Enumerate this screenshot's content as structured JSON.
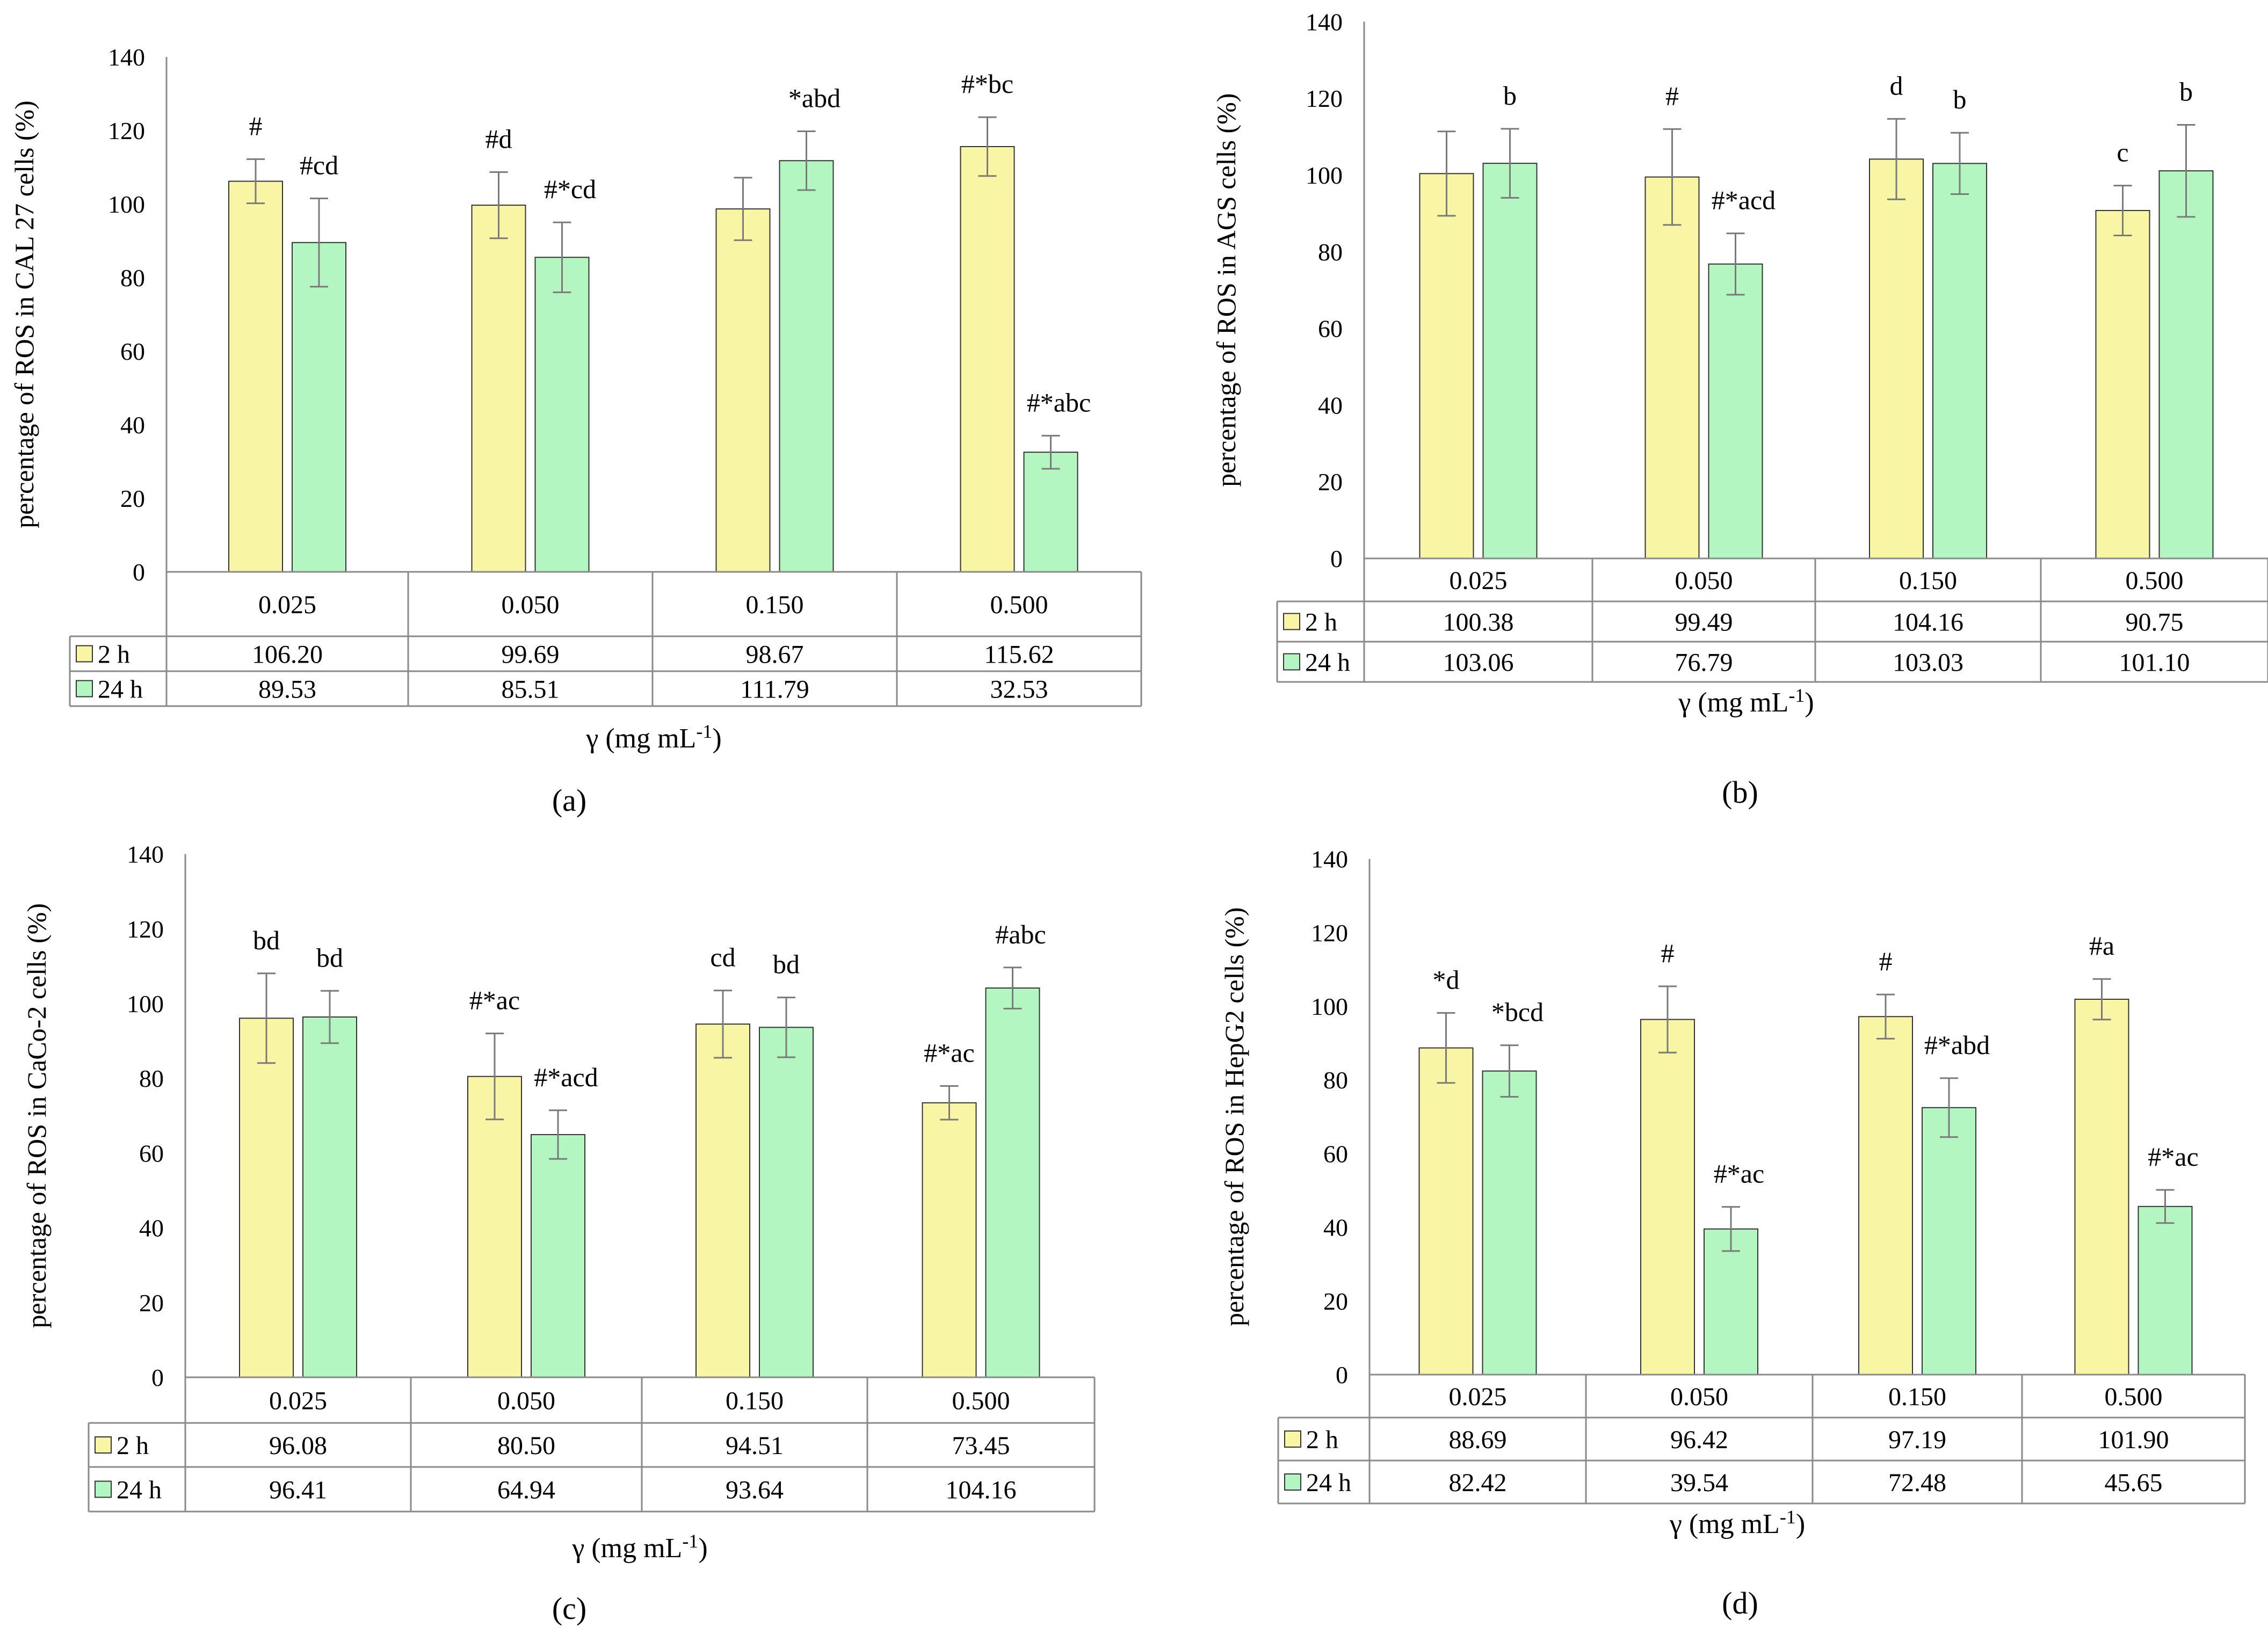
{
  "colors": {
    "bar_2h": "#f8f5a4",
    "bar_24h": "#b4f6c2",
    "bar_stroke": "#333333",
    "axis": "#8a8a8a",
    "error_bar": "#7a7a7a"
  },
  "chart_data": [
    {
      "type": "bar",
      "panel_label": "(a)",
      "ylabel": "percentage of  ROS in CAL 27 cells (%)",
      "xlabel": "γ (mg mL",
      "xlabel_sup": "-1",
      "xlabel_close": ")",
      "ylim": [
        0,
        140
      ],
      "yticks": [
        "0",
        "20",
        "40",
        "60",
        "80",
        "100",
        "120",
        "140"
      ],
      "categories": [
        "0.025",
        "0.050",
        "0.150",
        "0.500"
      ],
      "series": [
        {
          "name": "2 h",
          "values": [
            106.2,
            99.69,
            98.67,
            115.62
          ],
          "errors": [
            6,
            9,
            8.5,
            8
          ],
          "labels": [
            "106.20",
            "99.69",
            "98.67",
            "115.62"
          ],
          "annotations": [
            "#",
            "#d",
            "",
            "#*bc"
          ]
        },
        {
          "name": "24 h",
          "values": [
            89.53,
            85.51,
            111.79,
            32.53
          ],
          "errors": [
            12,
            9.5,
            8,
            4.5
          ],
          "labels": [
            "89.53",
            "85.51",
            "111.79",
            "32.53"
          ],
          "annotations": [
            "#cd",
            "#*cd",
            "*abd",
            "#*abc"
          ]
        }
      ]
    },
    {
      "type": "bar",
      "panel_label": "(b)",
      "ylabel": "percentage of  ROS in AGS cells (%)",
      "xlabel": "γ (mg mL",
      "xlabel_sup": "-1",
      "xlabel_close": ")",
      "ylim": [
        0,
        140
      ],
      "yticks": [
        "0",
        "20",
        "40",
        "60",
        "80",
        "100",
        "120",
        "140"
      ],
      "categories": [
        "0.025",
        "0.050",
        "0.150",
        "0.500"
      ],
      "series": [
        {
          "name": "2 h",
          "values": [
            100.38,
            99.49,
            104.16,
            90.75
          ],
          "errors": [
            11,
            12.5,
            10.5,
            6.5
          ],
          "labels": [
            "100.38",
            "99.49",
            "104.16",
            "90.75"
          ],
          "annotations": [
            "",
            "#",
            "d",
            "c"
          ]
        },
        {
          "name": "24 h",
          "values": [
            103.06,
            76.79,
            103.03,
            101.1
          ],
          "errors": [
            9,
            8,
            8,
            12
          ],
          "labels": [
            "103.06",
            "76.79",
            "103.03",
            "101.10"
          ],
          "annotations": [
            "b",
            "#*acd",
            "b",
            "b"
          ]
        }
      ]
    },
    {
      "type": "bar",
      "panel_label": "(c)",
      "ylabel": "percentage of  ROS in CaCo-2 cells (%)",
      "xlabel": "γ (mg mL",
      "xlabel_sup": "-1",
      "xlabel_close": ")",
      "ylim": [
        0,
        140
      ],
      "yticks": [
        "0",
        "20",
        "40",
        "60",
        "80",
        "100",
        "120",
        "140"
      ],
      "categories": [
        "0.025",
        "0.050",
        "0.150",
        "0.500"
      ],
      "series": [
        {
          "name": "2 h",
          "values": [
            96.08,
            80.5,
            94.51,
            73.45
          ],
          "errors": [
            12,
            11.5,
            9,
            4.5
          ],
          "labels": [
            "96.08",
            "80.50",
            "94.51",
            "73.45"
          ],
          "annotations": [
            "bd",
            "#*ac",
            "cd",
            "#*ac"
          ]
        },
        {
          "name": "24 h",
          "values": [
            96.41,
            64.94,
            93.64,
            104.16
          ],
          "errors": [
            7,
            6.5,
            8,
            5.5
          ],
          "labels": [
            "96.41",
            "64.94",
            "93.64",
            "104.16"
          ],
          "annotations": [
            "bd",
            "#*acd",
            "bd",
            "#abc"
          ]
        }
      ]
    },
    {
      "type": "bar",
      "panel_label": "(d)",
      "ylabel": "percentage of  ROS in HepG2 cells (%)",
      "xlabel": "γ (mg mL",
      "xlabel_sup": "-1",
      "xlabel_close": ")",
      "ylim": [
        0,
        140
      ],
      "yticks": [
        "0",
        "20",
        "40",
        "60",
        "80",
        "100",
        "120",
        "140"
      ],
      "categories": [
        "0.025",
        "0.050",
        "0.150",
        "0.500"
      ],
      "series": [
        {
          "name": "2 h",
          "values": [
            88.69,
            96.42,
            97.19,
            101.9
          ],
          "errors": [
            9.5,
            9,
            6,
            5.5
          ],
          "labels": [
            "88.69",
            "96.42",
            "97.19",
            "101.90"
          ],
          "annotations": [
            "*d",
            "#",
            "#",
            "#a"
          ]
        },
        {
          "name": "24 h",
          "values": [
            82.42,
            39.54,
            72.48,
            45.65
          ],
          "errors": [
            7,
            6,
            8,
            4.5
          ],
          "labels": [
            "82.42",
            "39.54",
            "72.48",
            "45.65"
          ],
          "annotations": [
            "*bcd",
            "#*ac",
            "#*abd",
            "#*ac"
          ]
        }
      ]
    }
  ]
}
